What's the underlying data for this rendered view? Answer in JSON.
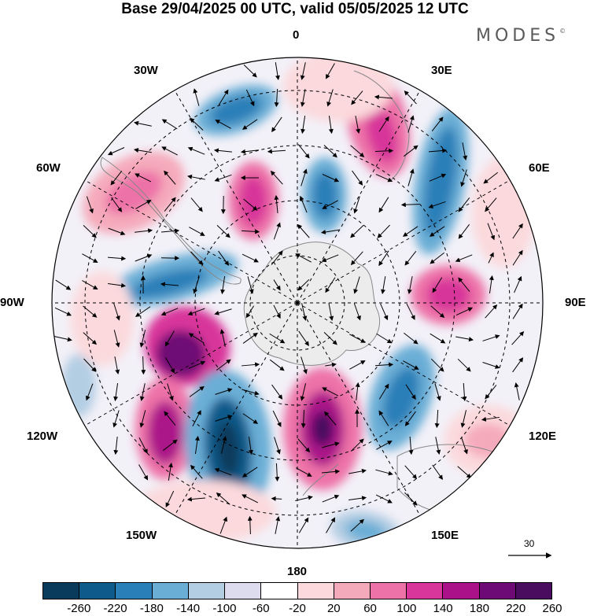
{
  "title": "Base 29/04/2025 00 UTC, valid 05/05/2025 12 UTC",
  "logo": {
    "text": "MODES",
    "mark": "©"
  },
  "longitude_labels": [
    "0",
    "30E",
    "60E",
    "90E",
    "120E",
    "150E",
    "180",
    "150W",
    "120W",
    "90W",
    "60W",
    "30W"
  ],
  "reference_vector": {
    "value": "30"
  },
  "colorbar": {
    "colors": [
      "#083b5c",
      "#0e5a8a",
      "#2a7fb8",
      "#6aaed6",
      "#b3cde3",
      "#dcdcee",
      "#ffffff",
      "#fbd9dc",
      "#f5aabb",
      "#ed72a8",
      "#d8369a",
      "#ab1289",
      "#6e0a75",
      "#4a0c5e"
    ],
    "ticks": [
      "-260",
      "-220",
      "-180",
      "-140",
      "-100",
      "-60",
      "-20",
      "20",
      "60",
      "100",
      "140",
      "180",
      "220",
      "260"
    ]
  },
  "colors": {
    "land": "#eeeeee",
    "coast": "#888888",
    "grid": "#000000"
  }
}
